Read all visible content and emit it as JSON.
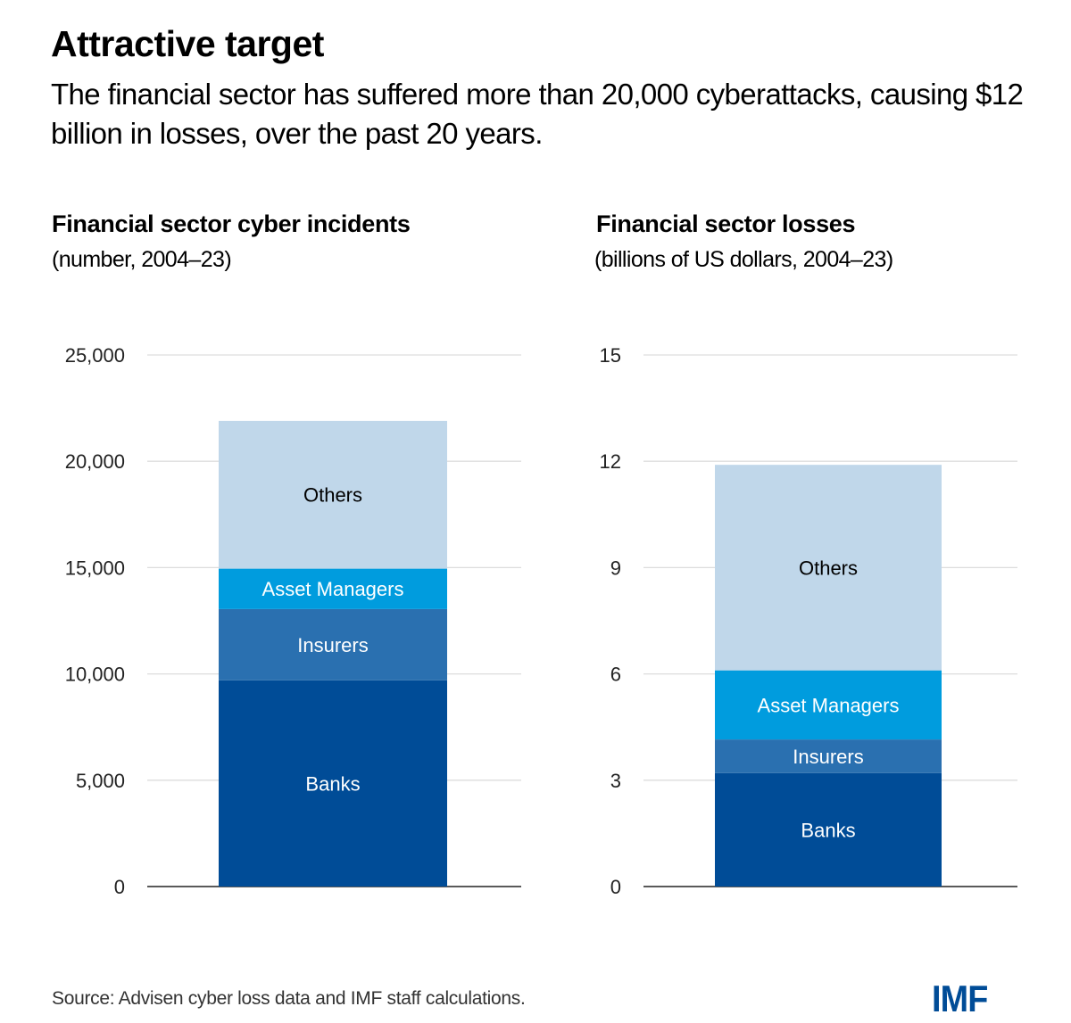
{
  "header": {
    "title": "Attractive target",
    "subtitle": "The financial sector has suffered more than 20,000 cyberattacks, causing $12 billion in losses, over the past 20 years."
  },
  "colors": {
    "Banks": "#004C97",
    "Insurers": "#2A70B0",
    "Asset Managers": "#009CDE",
    "Others": "#C0D7EA",
    "grid": "#DDDDDD",
    "axis": "#222222"
  },
  "chart_data": [
    {
      "type": "bar",
      "stacked": true,
      "title": "Financial sector cyber incidents",
      "subtitle": "(number, 2004–23)",
      "xlabel": "",
      "ylabel": "",
      "ylim": [
        0,
        25000
      ],
      "yticks": [
        0,
        5000,
        10000,
        15000,
        20000,
        25000
      ],
      "ytick_labels": [
        "0",
        "5,000",
        "10,000",
        "15,000",
        "20,000",
        "25,000"
      ],
      "grid": true,
      "categories": [
        "Financial sector"
      ],
      "series": [
        {
          "name": "Banks",
          "values": [
            9700
          ]
        },
        {
          "name": "Insurers",
          "values": [
            3350
          ]
        },
        {
          "name": "Asset Managers",
          "values": [
            1900
          ]
        },
        {
          "name": "Others",
          "values": [
            6950
          ]
        }
      ],
      "total": 21900
    },
    {
      "type": "bar",
      "stacked": true,
      "title": "Financial sector losses",
      "subtitle": "(billions of US dollars, 2004–23)",
      "xlabel": "",
      "ylabel": "",
      "ylim": [
        0,
        15
      ],
      "yticks": [
        0,
        3,
        6,
        9,
        12,
        15
      ],
      "ytick_labels": [
        "0",
        "3",
        "6",
        "9",
        "12",
        "15"
      ],
      "grid": true,
      "categories": [
        "Financial sector"
      ],
      "series": [
        {
          "name": "Banks",
          "values": [
            3.2
          ]
        },
        {
          "name": "Insurers",
          "values": [
            0.95
          ]
        },
        {
          "name": "Asset Managers",
          "values": [
            1.95
          ]
        },
        {
          "name": "Others",
          "values": [
            5.8
          ]
        }
      ],
      "total": 11.9
    }
  ],
  "footer": {
    "source": "Source: Advisen cyber loss data and IMF staff calculations.",
    "logo": "IMF"
  }
}
